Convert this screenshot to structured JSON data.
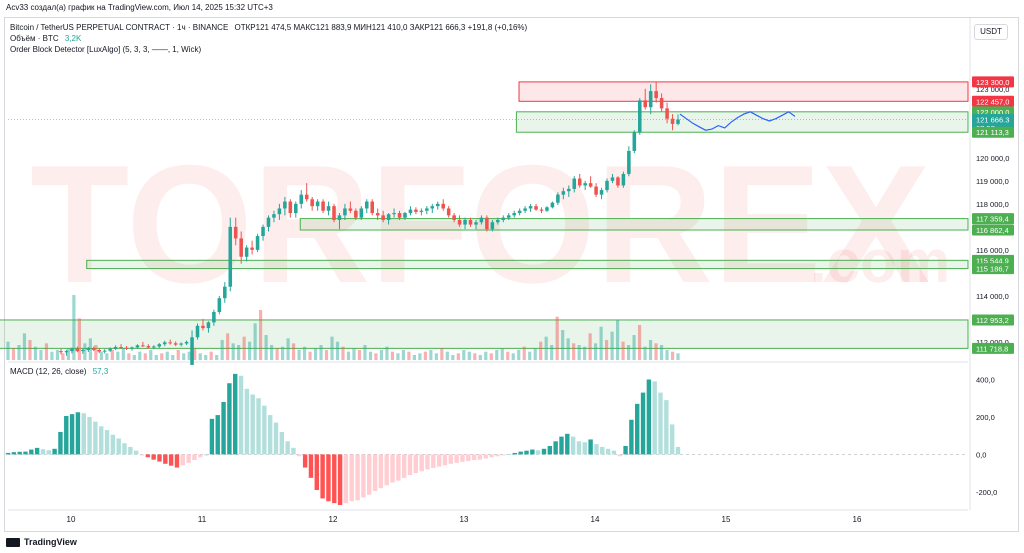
{
  "header": {
    "author_line": "Acv33 создал(а) график на TradingView.com, Июл 14, 2025 15:32 UTC+3"
  },
  "legend": {
    "symbol": "Bitcoin / TetherUS PERPETUAL CONTRACT · 1ч · BINANCE",
    "ohlc": "ОТКР121 474,5  МАКС121 883,9  МИН121 410,0  ЗАКР121 666,3  +191,8 (+0,16%)",
    "volume_label": "Объём · BTC",
    "volume_value": "3,2K",
    "indicator": "Order Block Detector [LuxAlgo] (5, 3, 3, ——, 1, Wick)",
    "macd_label": "MACD (12, 26, close)",
    "macd_value": "57,3"
  },
  "currency_button": "USDT",
  "watermark": {
    "brand": "TORFOREX",
    "domain": ".com"
  },
  "footer": {
    "brand": "TradingView"
  },
  "colors": {
    "up": "#26a69a",
    "down": "#ef5350",
    "bull_ob": "#4caf50",
    "bear_ob": "#f23645",
    "projection": "#2962ff"
  },
  "chart_data": [
    {
      "type": "candlestick",
      "title": "Bitcoin / TetherUS PERPETUAL CONTRACT · 1ч · BINANCE",
      "x_ticks": [
        "10",
        "11",
        "12",
        "13",
        "14",
        "15",
        "16"
      ],
      "y_ticks": [
        "112 000,0",
        "114 000,0",
        "116 000,0",
        "117 000,0",
        "118 000,0",
        "119 000,0",
        "120 000,0",
        "123 000,0"
      ],
      "ylim": [
        111300,
        124600
      ],
      "price_labels": [
        {
          "text": "123 300,0",
          "value": 123300,
          "kind": "bear"
        },
        {
          "text": "122 457,0",
          "value": 122457,
          "kind": "bear"
        },
        {
          "text": "122 000,0",
          "value": 122000,
          "kind": "bull"
        },
        {
          "text": "121 666,3",
          "value": 121666.3,
          "kind": "last"
        },
        {
          "text": "27:57",
          "value": 121300,
          "kind": "timer"
        },
        {
          "text": "121 113,3",
          "value": 121113.3,
          "kind": "bull"
        },
        {
          "text": "117 359,4",
          "value": 117359.4,
          "kind": "bull"
        },
        {
          "text": "116 862,4",
          "value": 116862.4,
          "kind": "bull"
        },
        {
          "text": "115 544,9",
          "value": 115544.9,
          "kind": "bull"
        },
        {
          "text": "115 186,7",
          "value": 115186.7,
          "kind": "bull"
        },
        {
          "text": "112 953,2",
          "value": 112953.2,
          "kind": "bull"
        },
        {
          "text": "111 718,8",
          "value": 111718.8,
          "kind": "bull"
        }
      ],
      "order_blocks": [
        {
          "kind": "bear",
          "top": 123300,
          "bottom": 122457,
          "x_start": 13.42
        },
        {
          "kind": "bull",
          "top": 122000,
          "bottom": 121113.3,
          "x_start": 13.4
        },
        {
          "kind": "bull",
          "top": 117359.4,
          "bottom": 116862.4,
          "x_start": 11.75
        },
        {
          "kind": "bull",
          "top": 115544.9,
          "bottom": 115186.7,
          "x_start": 10.12
        },
        {
          "kind": "bull",
          "top": 112953.2,
          "bottom": 111718.8,
          "x_start": 9.0
        }
      ],
      "candles": [
        [
          121800,
          119000
        ],
        [
          121500,
          119300
        ],
        [
          121200,
          119300
        ],
        [
          120900,
          119000
        ],
        [
          120600,
          118700
        ],
        [
          120300,
          118400
        ],
        [
          120000,
          118100
        ],
        [
          119700,
          117800
        ],
        [
          119400,
          117500
        ],
        [
          119100,
          117200
        ],
        [
          118800,
          116900
        ],
        [
          118500,
          116600
        ],
        [
          118200,
          116300
        ],
        [
          117900,
          116000
        ],
        [
          117600,
          115700
        ],
        [
          117300,
          115400
        ],
        [
          117000,
          115100
        ],
        [
          116700,
          114800
        ],
        [
          116400,
          114500
        ],
        [
          116100,
          114200
        ],
        [
          115800,
          113900
        ],
        [
          115500,
          113600
        ],
        [
          115200,
          113300
        ],
        [
          114900,
          113000
        ],
        [
          114600,
          112700
        ],
        [
          114300,
          112400
        ],
        [
          114000,
          112100
        ],
        [
          113700,
          111800
        ],
        [
          113400,
          111500
        ],
        [
          113100,
          111200
        ],
        [
          112853,
          111200
        ],
        [
          112800,
          111200
        ],
        [
          112800,
          111500
        ],
        [
          112700,
          111500
        ],
        [
          112500,
          111400
        ]
      ],
      "ohlc": [
        [
          111600,
          111700,
          111450,
          111550
        ],
        [
          111550,
          111650,
          111400,
          111600
        ],
        [
          111600,
          111750,
          111500,
          111700
        ],
        [
          111700,
          111800,
          111550,
          111600
        ],
        [
          111600,
          111700,
          111480,
          111650
        ],
        [
          111650,
          111780,
          111560,
          111720
        ],
        [
          111720,
          111800,
          111600,
          111650
        ],
        [
          111650,
          111720,
          111520,
          111580
        ],
        [
          111580,
          111680,
          111500,
          111620
        ],
        [
          111620,
          111760,
          111560,
          111700
        ],
        [
          111700,
          111850,
          111640,
          111780
        ],
        [
          111780,
          111900,
          111700,
          111740
        ],
        [
          111740,
          111820,
          111650,
          111700
        ],
        [
          111700,
          111800,
          111620,
          111760
        ],
        [
          111760,
          111900,
          111700,
          111850
        ],
        [
          111850,
          112000,
          111780,
          111820
        ],
        [
          111820,
          111900,
          111700,
          111760
        ],
        [
          111760,
          111860,
          111680,
          111800
        ],
        [
          111800,
          111950,
          111740,
          111900
        ],
        [
          111900,
          112050,
          111820,
          111980
        ],
        [
          111980,
          112100,
          111880,
          111940
        ],
        [
          111940,
          112020,
          111820,
          111880
        ],
        [
          111880,
          111980,
          111800,
          111930
        ],
        [
          111930,
          112060,
          111860,
          112000
        ],
        [
          111000,
          112500,
          111000,
          112200
        ],
        [
          112200,
          112800,
          112100,
          112700
        ],
        [
          112700,
          113000,
          112500,
          112600
        ],
        [
          112600,
          112900,
          112400,
          112850
        ],
        [
          112850,
          113400,
          112700,
          113300
        ],
        [
          113300,
          114000,
          113200,
          113900
        ],
        [
          113900,
          114600,
          113700,
          114400
        ],
        [
          114400,
          117400,
          114200,
          117000
        ],
        [
          117000,
          117400,
          116200,
          116500
        ],
        [
          116500,
          116800,
          115400,
          115700
        ],
        [
          115700,
          116200,
          115500,
          116100
        ],
        [
          116100,
          116400,
          115800,
          116000
        ],
        [
          116000,
          116700,
          115900,
          116600
        ],
        [
          116600,
          117100,
          116400,
          117000
        ],
        [
          117000,
          117500,
          116800,
          117400
        ],
        [
          117400,
          117700,
          117200,
          117550
        ],
        [
          117550,
          118000,
          117300,
          117800
        ],
        [
          117800,
          118300,
          117500,
          118100
        ],
        [
          118100,
          118200,
          117400,
          117600
        ],
        [
          117600,
          118100,
          117400,
          118000
        ],
        [
          118000,
          118600,
          117800,
          118400
        ],
        [
          118400,
          118900,
          118100,
          118200
        ],
        [
          118200,
          118300,
          117700,
          117900
        ],
        [
          117900,
          118200,
          117700,
          118100
        ],
        [
          118100,
          118200,
          117600,
          117700
        ],
        [
          117700,
          118100,
          117500,
          117900
        ],
        [
          117900,
          118000,
          117200,
          117300
        ],
        [
          117300,
          117600,
          116900,
          117500
        ],
        [
          117500,
          118000,
          117300,
          117800
        ],
        [
          117800,
          118100,
          117600,
          117700
        ],
        [
          117700,
          117800,
          117300,
          117400
        ],
        [
          117400,
          117900,
          117300,
          117800
        ],
        [
          117800,
          118200,
          117600,
          118100
        ],
        [
          118100,
          118200,
          117500,
          117600
        ],
        [
          117600,
          117800,
          117300,
          117500
        ],
        [
          117500,
          117700,
          117200,
          117300
        ],
        [
          117300,
          117600,
          117100,
          117550
        ],
        [
          117550,
          117800,
          117400,
          117600
        ],
        [
          117600,
          117700,
          117300,
          117400
        ],
        [
          117400,
          117650,
          117300,
          117600
        ],
        [
          117600,
          117900,
          117500,
          117750
        ],
        [
          117750,
          117850,
          117550,
          117650
        ],
        [
          117650,
          117800,
          117500,
          117700
        ],
        [
          117700,
          117900,
          117550,
          117800
        ],
        [
          117800,
          118000,
          117600,
          117900
        ],
        [
          117900,
          118100,
          117750,
          118000
        ],
        [
          118000,
          118200,
          117700,
          117800
        ],
        [
          117800,
          117900,
          117400,
          117500
        ],
        [
          117500,
          117600,
          117200,
          117300
        ],
        [
          117300,
          117500,
          117000,
          117100
        ],
        [
          117100,
          117400,
          116900,
          117300
        ],
        [
          117300,
          117400,
          117000,
          117100
        ],
        [
          117100,
          117300,
          116900,
          117200
        ],
        [
          117200,
          117500,
          117100,
          117400
        ],
        [
          117400,
          117500,
          116800,
          116900
        ],
        [
          116900,
          117300,
          116800,
          117200
        ],
        [
          117200,
          117400,
          117100,
          117300
        ],
        [
          117300,
          117500,
          117200,
          117400
        ],
        [
          117400,
          117600,
          117300,
          117500
        ],
        [
          117500,
          117700,
          117400,
          117600
        ],
        [
          117600,
          117800,
          117500,
          117700
        ],
        [
          117700,
          117900,
          117600,
          117800
        ],
        [
          117800,
          118000,
          117650,
          117900
        ],
        [
          117900,
          118000,
          117700,
          117750
        ],
        [
          117750,
          117850,
          117600,
          117700
        ],
        [
          117700,
          117900,
          117650,
          117850
        ],
        [
          117850,
          118100,
          117800,
          118050
        ],
        [
          118050,
          118500,
          117950,
          118400
        ],
        [
          118400,
          118700,
          118200,
          118550
        ],
        [
          118550,
          118800,
          118300,
          118650
        ],
        [
          118650,
          119200,
          118500,
          119100
        ],
        [
          119100,
          119300,
          118700,
          118800
        ],
        [
          118800,
          119000,
          118600,
          118900
        ],
        [
          118900,
          119200,
          118700,
          118750
        ],
        [
          118750,
          118900,
          118300,
          118400
        ],
        [
          118400,
          118700,
          118200,
          118600
        ],
        [
          118600,
          119100,
          118500,
          119000
        ],
        [
          119000,
          119300,
          118900,
          119150
        ],
        [
          119150,
          119200,
          118700,
          118800
        ],
        [
          118800,
          119400,
          118700,
          119300
        ],
        [
          119300,
          120500,
          119200,
          120300
        ],
        [
          120300,
          121200,
          120200,
          121100
        ],
        [
          121100,
          122600,
          121000,
          122500
        ],
        [
          122500,
          123000,
          122100,
          122200
        ],
        [
          122200,
          123200,
          121900,
          122900
        ],
        [
          122900,
          123300,
          122400,
          122600
        ],
        [
          122600,
          122800,
          122000,
          122150
        ],
        [
          122150,
          122400,
          121500,
          121700
        ],
        [
          121700,
          121900,
          121200,
          121474.5
        ],
        [
          121474.5,
          121883.9,
          121410,
          121666.3
        ]
      ],
      "projection": [
        [
          121900,
          121700,
          121500,
          121350,
          121200,
          121250,
          121400,
          121300,
          121550,
          121750,
          121900,
          122000,
          121850,
          121700,
          121600,
          121700,
          121850,
          122000,
          121800
        ]
      ],
      "volume": {
        "values": [
          1.1,
          0.7,
          0.9,
          1.6,
          1.2,
          0.8,
          0.6,
          1.0,
          0.5,
          0.6,
          0.4,
          0.7,
          3.9,
          2.5,
          1.0,
          1.3,
          0.9,
          0.5,
          0.4,
          0.6,
          0.5,
          0.7,
          0.4,
          0.3,
          0.5,
          0.4,
          0.6,
          0.3,
          0.4,
          0.5,
          0.3,
          0.6,
          0.4,
          0.5,
          0.7,
          0.4,
          0.3,
          0.5,
          0.3,
          1.2,
          1.6,
          1.0,
          0.9,
          1.4,
          1.1,
          2.2,
          3.0,
          1.5,
          0.9,
          0.7,
          0.8,
          1.3,
          1.0,
          0.6,
          0.8,
          0.5,
          0.7,
          0.9,
          0.6,
          1.4,
          1.1,
          0.8,
          0.5,
          0.7,
          0.6,
          0.9,
          0.5,
          0.4,
          0.6,
          0.8,
          0.5,
          0.4,
          0.6,
          0.5,
          0.3,
          0.4,
          0.5,
          0.6,
          0.4,
          0.7,
          0.5,
          0.3,
          0.4,
          0.6,
          0.5,
          0.4,
          0.3,
          0.5,
          0.4,
          0.6,
          0.7,
          0.5,
          0.4,
          0.6,
          0.8,
          0.5,
          0.7,
          1.1,
          1.4,
          0.9,
          2.6,
          1.8,
          1.3,
          1.0,
          0.9,
          0.8,
          1.6,
          1.0,
          2.0,
          1.2,
          1.7,
          2.4,
          1.1,
          0.9,
          1.5,
          2.1,
          0.8,
          1.2,
          1.0,
          0.9,
          0.6,
          0.5,
          0.4
        ]
      }
    },
    {
      "type": "bar",
      "title": "MACD (12, 26, close)",
      "y_ticks": [
        "400,0",
        "200,0",
        "0,0",
        "-200,0"
      ],
      "ylim": [
        -270,
        440
      ],
      "values": [
        8,
        12,
        14,
        15,
        26,
        35,
        28,
        22,
        30,
        120,
        205,
        215,
        225,
        220,
        200,
        175,
        150,
        130,
        105,
        85,
        60,
        40,
        20,
        -5,
        -15,
        -28,
        -38,
        -50,
        -60,
        -70,
        -58,
        -45,
        -30,
        -15,
        0,
        190,
        210,
        280,
        380,
        430,
        420,
        350,
        320,
        300,
        260,
        210,
        170,
        120,
        70,
        35,
        -10,
        -70,
        -125,
        -190,
        -235,
        -250,
        -260,
        -270,
        -260,
        -250,
        -245,
        -230,
        -215,
        -195,
        -180,
        -165,
        -150,
        -140,
        -125,
        -110,
        -100,
        -90,
        -80,
        -72,
        -65,
        -58,
        -50,
        -45,
        -40,
        -35,
        -30,
        -28,
        -22,
        -15,
        -10,
        -5,
        2,
        8,
        15,
        20,
        26,
        22,
        30,
        45,
        70,
        95,
        110,
        95,
        70,
        65,
        80,
        55,
        40,
        30,
        20,
        -10,
        45,
        185,
        270,
        330,
        400,
        390,
        330,
        290,
        160,
        40
      ],
      "series": [
        {
          "name": "MACD",
          "value_label": "57,3"
        }
      ]
    }
  ]
}
